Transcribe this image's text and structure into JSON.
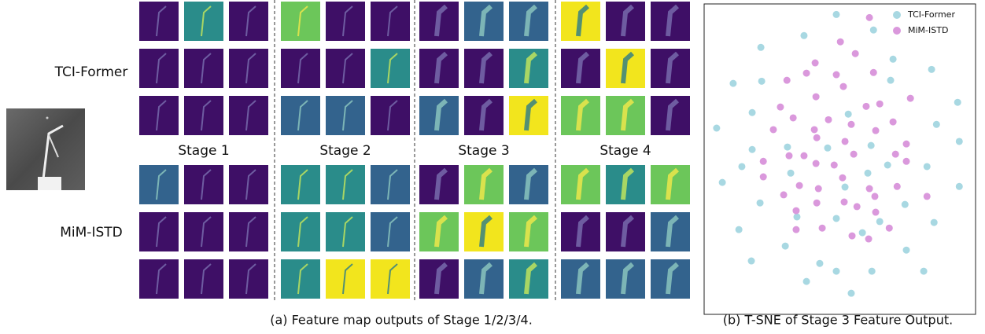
{
  "figure": {
    "row_labels": [
      "TCI-Former",
      "MiM-ISTD"
    ],
    "stage_labels": [
      "Stage 1",
      "Stage 2",
      "Stage 3",
      "Stage 4"
    ],
    "caption": "(a) Feature map outputs of Stage 1/2/3/4."
  },
  "chart_data": {
    "type": "scatter",
    "caption": "(b) T-SNE of Stage 3 Feature Output.",
    "xlim": [
      0,
      100
    ],
    "ylim": [
      0,
      100
    ],
    "legend": "upper right",
    "series": [
      {
        "name": "TCI-Former",
        "color": "#a8d8e2",
        "x": [
          48.7,
          62.4,
          36.8,
          20.9,
          69.6,
          83.8,
          10.7,
          21.2,
          68.7,
          93.4,
          17.7,
          53.1,
          4.6,
          85.6,
          94.0,
          17.7,
          30.7,
          61.5,
          13.9,
          45.5,
          67.6,
          82.1,
          6.7,
          31.9,
          60.3,
          94.0,
          51.9,
          20.6,
          74.0,
          48.7,
          34.2,
          12.8,
          84.7,
          64.7,
          58.3,
          29.9,
          74.5,
          17.4,
          42.6,
          61.8,
          80.9,
          48.7,
          37.7,
          54.2
        ],
        "values": [
          96.6,
          91.6,
          89.8,
          86.0,
          82.2,
          78.9,
          74.4,
          75.1,
          75.4,
          68.3,
          65.0,
          64.5,
          60.0,
          61.2,
          55.7,
          53.1,
          53.9,
          54.4,
          47.6,
          53.6,
          48.1,
          47.6,
          42.5,
          45.5,
          45.5,
          41.2,
          41.0,
          35.9,
          35.4,
          30.9,
          31.4,
          27.3,
          29.6,
          29.9,
          26.3,
          22.0,
          20.7,
          17.2,
          16.4,
          13.9,
          13.9,
          13.9,
          10.6,
          6.8
        ]
      },
      {
        "name": "MiM-ISTD",
        "color": "#da98dc",
        "x": [
          60.9,
          50.2,
          55.7,
          40.9,
          37.7,
          48.7,
          62.4,
          30.5,
          51.3,
          41.2,
          76.0,
          28.1,
          59.7,
          64.7,
          32.8,
          45.8,
          54.2,
          69.6,
          25.5,
          40.6,
          63.2,
          41.5,
          74.5,
          51.9,
          55.1,
          70.5,
          31.3,
          21.8,
          41.2,
          36.8,
          47.9,
          74.5,
          60.9,
          51.0,
          62.9,
          21.8,
          71.1,
          42.1,
          29.3,
          33.9,
          51.6,
          35.1,
          82.1,
          41.5,
          56.3,
          63.2,
          68.2,
          43.5,
          54.5,
          60.6,
          33.9
        ],
        "values": [
          95.6,
          87.8,
          84.0,
          81.0,
          77.7,
          77.2,
          77.9,
          75.4,
          73.4,
          70.1,
          69.6,
          66.8,
          67.0,
          67.8,
          63.3,
          62.7,
          61.2,
          62.0,
          59.5,
          59.5,
          59.2,
          56.9,
          54.9,
          55.7,
          51.6,
          51.6,
          51.1,
          49.3,
          48.6,
          51.1,
          48.1,
          49.3,
          40.5,
          44.0,
          38.0,
          44.3,
          41.2,
          40.5,
          38.5,
          33.4,
          36.2,
          41.5,
          38.0,
          35.9,
          34.7,
          32.9,
          27.8,
          27.8,
          25.3,
          24.3,
          27.3
        ]
      }
    ]
  }
}
